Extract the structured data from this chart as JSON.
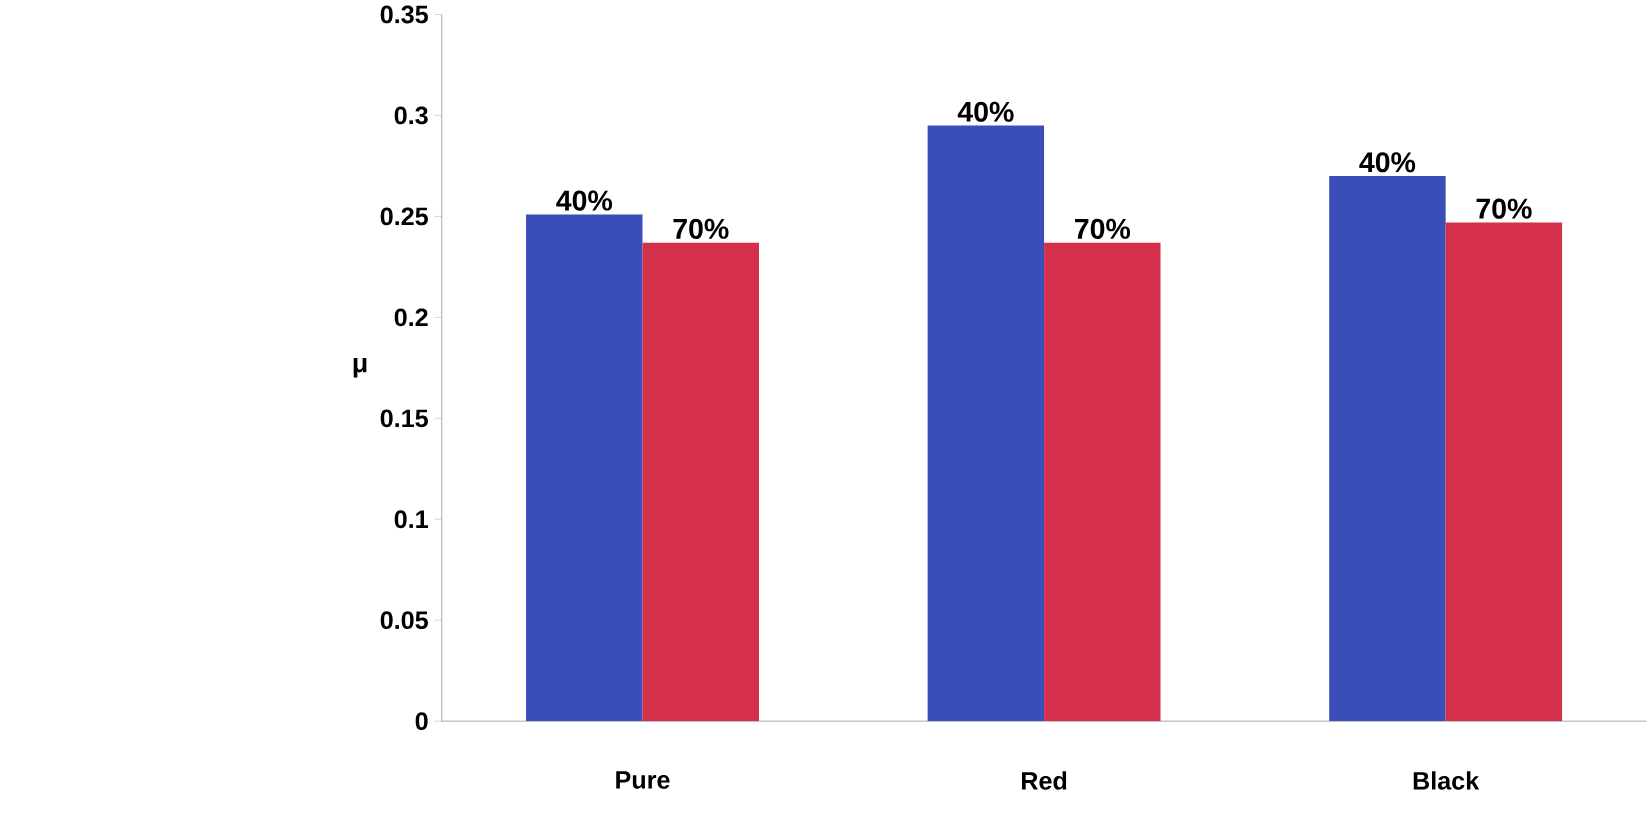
{
  "chart_data": {
    "type": "bar",
    "ylabel": "μ",
    "categories": [
      "Pure",
      "Red",
      "Black"
    ],
    "series": [
      {
        "name": "40%",
        "color": "#3a4db8",
        "values": [
          0.251,
          0.295,
          0.27
        ]
      },
      {
        "name": "70%",
        "color": "#d4304c",
        "values": [
          0.237,
          0.237,
          0.247
        ]
      }
    ],
    "ylim": [
      0,
      0.35
    ],
    "yticks": [
      0,
      0.05,
      0.1,
      0.15,
      0.2,
      0.25,
      0.3,
      0.35
    ],
    "grid": false,
    "legend": false
  }
}
